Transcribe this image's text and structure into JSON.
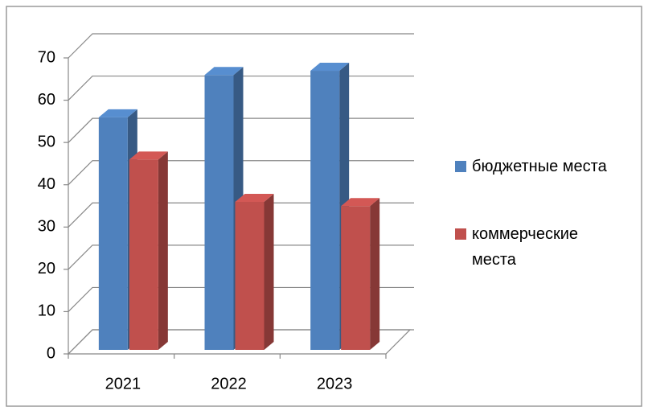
{
  "chart_data": {
    "type": "bar3d",
    "categories": [
      "2021",
      "2022",
      "2023"
    ],
    "series": [
      {
        "name": "бюджетные места",
        "color": "#4f81bd",
        "values": [
          55,
          65,
          66
        ]
      },
      {
        "name": "коммерческие места",
        "color": "#c0504d",
        "values": [
          45,
          35,
          34
        ]
      }
    ],
    "ylim": [
      0,
      70
    ],
    "yticks": [
      0,
      10,
      20,
      30,
      40,
      50,
      60,
      70
    ],
    "grid": true,
    "legend": "right"
  }
}
